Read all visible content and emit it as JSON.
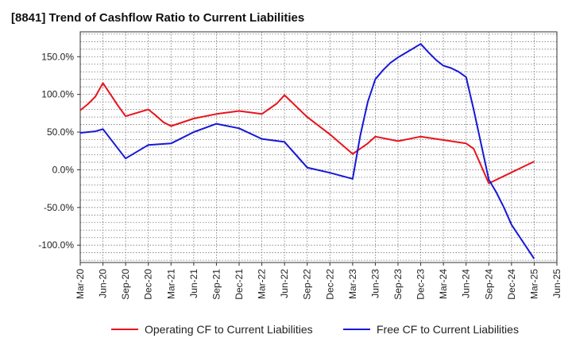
{
  "chart_data": {
    "type": "line",
    "title": "[8841]  Trend of Cashflow Ratio to Current Liabilities",
    "xlabel": "",
    "ylabel": "",
    "x_ticks": [
      "Mar-20",
      "Jun-20",
      "Sep-20",
      "Dec-20",
      "Mar-21",
      "Jun-21",
      "Sep-21",
      "Dec-21",
      "Mar-22",
      "Jun-22",
      "Sep-22",
      "Dec-22",
      "Mar-23",
      "Jun-23",
      "Sep-23",
      "Dec-23",
      "Mar-24",
      "Jun-24",
      "Sep-24",
      "Dec-24",
      "Mar-25",
      "Jun-25"
    ],
    "y_ticks": [
      150,
      100,
      50,
      0,
      -50,
      -100
    ],
    "y_tick_labels": [
      "150.0%",
      "100.0%",
      "50.0%",
      "0.0%",
      "-50.0%",
      "-100.0%"
    ],
    "ylim": [
      -123,
      183
    ],
    "grid": true,
    "legend_position": "bottom",
    "series": [
      {
        "name": "Operating CF to Current Liabilities",
        "color": "#e8141c",
        "points": [
          [
            "Mar-20",
            79
          ],
          [
            "Apr-20",
            87
          ],
          [
            "May-20",
            97
          ],
          [
            "Jun-20",
            115
          ],
          [
            "Jul-20",
            100
          ],
          [
            "Aug-20",
            85
          ],
          [
            "Sep-20",
            71
          ],
          [
            "Dec-20",
            80
          ],
          [
            "Jan-21",
            72
          ],
          [
            "Feb-21",
            63
          ],
          [
            "Mar-21",
            58
          ],
          [
            "Jun-21",
            68
          ],
          [
            "Sep-21",
            74
          ],
          [
            "Dec-21",
            78
          ],
          [
            "Mar-22",
            74
          ],
          [
            "May-22",
            88
          ],
          [
            "Jun-22",
            99
          ],
          [
            "Sep-22",
            70
          ],
          [
            "Dec-22",
            47
          ],
          [
            "Mar-23",
            21
          ],
          [
            "Apr-23",
            28
          ],
          [
            "May-23",
            35
          ],
          [
            "Jun-23",
            44
          ],
          [
            "Sep-23",
            38
          ],
          [
            "Dec-23",
            44
          ],
          [
            "Jun-24",
            35
          ],
          [
            "Jul-24",
            28
          ],
          [
            "Sep-24",
            -18
          ],
          [
            "Mar-25",
            11
          ]
        ]
      },
      {
        "name": "Free CF to Current Liabilities",
        "color": "#1717d6",
        "points": [
          [
            "Mar-20",
            49
          ],
          [
            "May-20",
            51
          ],
          [
            "Jun-20",
            54
          ],
          [
            "Sep-20",
            15
          ],
          [
            "Dec-20",
            33
          ],
          [
            "Mar-21",
            35
          ],
          [
            "Jun-21",
            50
          ],
          [
            "Sep-21",
            61
          ],
          [
            "Dec-21",
            55
          ],
          [
            "Mar-22",
            41
          ],
          [
            "Jun-22",
            37
          ],
          [
            "Sep-22",
            3
          ],
          [
            "Dec-22",
            -4
          ],
          [
            "Mar-23",
            -12
          ],
          [
            "Apr-23",
            45
          ],
          [
            "May-23",
            90
          ],
          [
            "Jun-23",
            120
          ],
          [
            "Jul-23",
            132
          ],
          [
            "Aug-23",
            142
          ],
          [
            "Sep-23",
            149
          ],
          [
            "Dec-23",
            167
          ],
          [
            "Jan-24",
            156
          ],
          [
            "Feb-24",
            146
          ],
          [
            "Mar-24",
            138
          ],
          [
            "Apr-24",
            135
          ],
          [
            "May-24",
            130
          ],
          [
            "Jun-24",
            123
          ],
          [
            "Jul-24",
            80
          ],
          [
            "Sep-24",
            -13
          ],
          [
            "Oct-24",
            -30
          ],
          [
            "Nov-24",
            -50
          ],
          [
            "Dec-24",
            -73
          ],
          [
            "Mar-25",
            -118
          ]
        ]
      }
    ]
  }
}
